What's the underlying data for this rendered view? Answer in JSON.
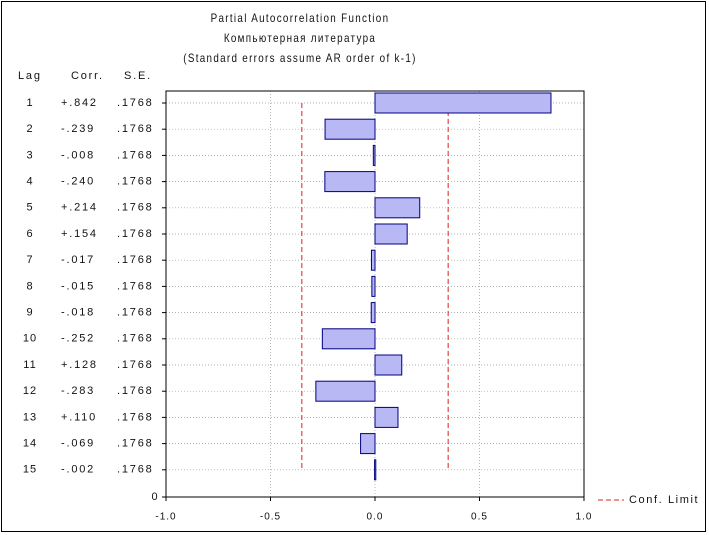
{
  "chart_data": {
    "type": "bar",
    "orientation": "horizontal",
    "title": "Partial Autocorrelation Function",
    "subtitle": "Компьютерная литература",
    "note": "(Standard errors assume AR order of k-1)",
    "column_headers": [
      "Lag",
      "Corr.",
      "S.E."
    ],
    "lags": [
      "1",
      "2",
      "3",
      "4",
      "5",
      "6",
      "7",
      "8",
      "9",
      "10",
      "11",
      "12",
      "13",
      "14",
      "15"
    ],
    "corr_labels": [
      "+.842",
      "-.239",
      "-.008",
      "-.240",
      "+.214",
      "+.154",
      "-.017",
      "-.015",
      "-.018",
      "-.252",
      "+.128",
      "-.283",
      "+.110",
      "-.069",
      "-.002"
    ],
    "se_labels": [
      ".1768",
      ".1768",
      ".1768",
      ".1768",
      ".1768",
      ".1768",
      ".1768",
      ".1768",
      ".1768",
      ".1768",
      ".1768",
      ".1768",
      ".1768",
      ".1768",
      ".1768"
    ],
    "values": [
      0.842,
      -0.239,
      -0.008,
      -0.24,
      0.214,
      0.154,
      -0.017,
      -0.015,
      -0.018,
      -0.252,
      0.128,
      -0.283,
      0.11,
      -0.069,
      -0.002
    ],
    "conf_limit": 0.35,
    "xlim": [
      -1.0,
      1.0
    ],
    "x_ticks": [
      "-1.0",
      "-0.5",
      "0.0",
      "0.5",
      "1.0"
    ],
    "zero_row_label": "0",
    "legend": {
      "label": "Conf. Limit",
      "placement": "right-bottom"
    },
    "colors": {
      "bar_fill": "#b8b8f4",
      "bar_stroke": "#000080",
      "conf_line": "#e02020",
      "grid": "#999999"
    }
  }
}
